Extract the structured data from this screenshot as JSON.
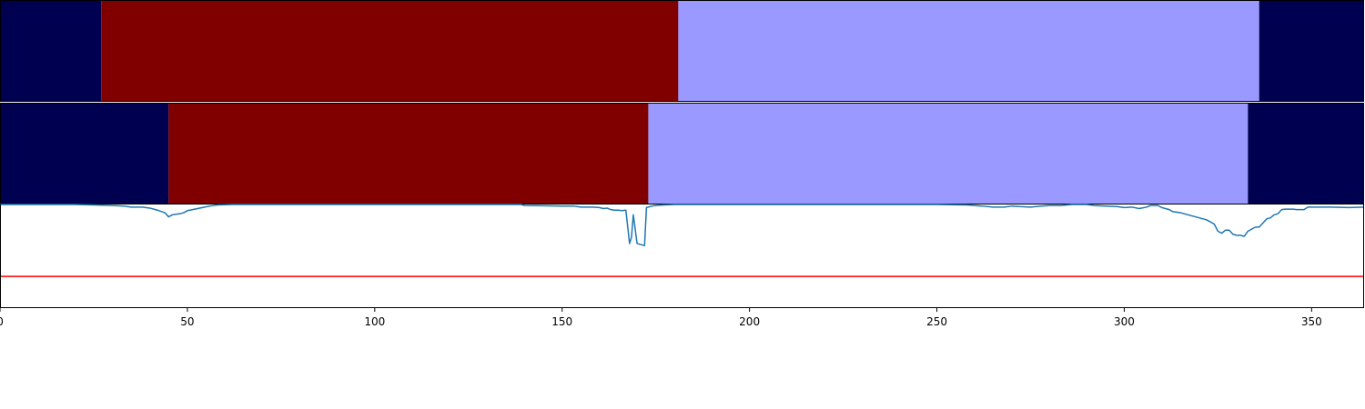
{
  "chart_data": {
    "type": "area",
    "xlim": [
      0,
      364
    ],
    "x_ticks": [
      0,
      50,
      100,
      150,
      200,
      250,
      300,
      350
    ],
    "colors": {
      "state_a": "#000050",
      "state_b": "#800000",
      "state_c": "#9999ff",
      "line": "#1f77b4",
      "threshold": "#ff0000",
      "axes": "#000000"
    },
    "segment_rows": [
      {
        "segments": [
          {
            "start": 0,
            "end": 27,
            "state": "state_a"
          },
          {
            "start": 27,
            "end": 181,
            "state": "state_b"
          },
          {
            "start": 181,
            "end": 336,
            "state": "state_c"
          },
          {
            "start": 336,
            "end": 364,
            "state": "state_a"
          }
        ]
      },
      {
        "segments": [
          {
            "start": 0,
            "end": 45,
            "state": "state_a"
          },
          {
            "start": 45,
            "end": 173,
            "state": "state_b"
          },
          {
            "start": 173,
            "end": 333,
            "state": "state_c"
          },
          {
            "start": 333,
            "end": 364,
            "state": "state_a"
          }
        ]
      }
    ],
    "signal": {
      "ylim": [
        0,
        1
      ],
      "threshold": 0.3,
      "points": [
        [
          0,
          1.0
        ],
        [
          20,
          1.0
        ],
        [
          25,
          0.995
        ],
        [
          30,
          0.99
        ],
        [
          33,
          0.985
        ],
        [
          35,
          0.975
        ],
        [
          38,
          0.975
        ],
        [
          40,
          0.965
        ],
        [
          42,
          0.945
        ],
        [
          44,
          0.92
        ],
        [
          45,
          0.88
        ],
        [
          46,
          0.9
        ],
        [
          48,
          0.91
        ],
        [
          49,
          0.92
        ],
        [
          50,
          0.94
        ],
        [
          52,
          0.955
        ],
        [
          54,
          0.97
        ],
        [
          56,
          0.985
        ],
        [
          58,
          0.995
        ],
        [
          62,
          1.0
        ],
        [
          70,
          1.0
        ],
        [
          120,
          1.0
        ],
        [
          139,
          1.0
        ],
        [
          140,
          0.99
        ],
        [
          145,
          0.988
        ],
        [
          150,
          0.985
        ],
        [
          153,
          0.985
        ],
        [
          155,
          0.975
        ],
        [
          158,
          0.975
        ],
        [
          160,
          0.97
        ],
        [
          161,
          0.96
        ],
        [
          162,
          0.965
        ],
        [
          163,
          0.95
        ],
        [
          164,
          0.945
        ],
        [
          165,
          0.945
        ],
        [
          166,
          0.94
        ],
        [
          167,
          0.945
        ],
        [
          168,
          0.62
        ],
        [
          168.5,
          0.68
        ],
        [
          169,
          0.9
        ],
        [
          170,
          0.62
        ],
        [
          172,
          0.6
        ],
        [
          172.5,
          0.97
        ],
        [
          174,
          0.985
        ],
        [
          175,
          0.99
        ],
        [
          177,
          0.995
        ],
        [
          180,
          1.0
        ],
        [
          200,
          1.0
        ],
        [
          230,
          1.0
        ],
        [
          250,
          1.0
        ],
        [
          258,
          0.995
        ],
        [
          262,
          0.985
        ],
        [
          265,
          0.975
        ],
        [
          268,
          0.975
        ],
        [
          270,
          0.985
        ],
        [
          272,
          0.98
        ],
        [
          275,
          0.975
        ],
        [
          278,
          0.985
        ],
        [
          280,
          0.99
        ],
        [
          283,
          0.99
        ],
        [
          286,
          1.0
        ],
        [
          290,
          1.0
        ],
        [
          292,
          0.99
        ],
        [
          295,
          0.985
        ],
        [
          298,
          0.98
        ],
        [
          300,
          0.97
        ],
        [
          302,
          0.975
        ],
        [
          304,
          0.96
        ],
        [
          306,
          0.975
        ],
        [
          307,
          0.99
        ],
        [
          309,
          0.99
        ],
        [
          310,
          0.97
        ],
        [
          312,
          0.95
        ],
        [
          313,
          0.93
        ],
        [
          315,
          0.92
        ],
        [
          317,
          0.9
        ],
        [
          318,
          0.89
        ],
        [
          320,
          0.87
        ],
        [
          322,
          0.85
        ],
        [
          323,
          0.83
        ],
        [
          324,
          0.81
        ],
        [
          325,
          0.74
        ],
        [
          326,
          0.72
        ],
        [
          327,
          0.75
        ],
        [
          328,
          0.75
        ],
        [
          329,
          0.71
        ],
        [
          330,
          0.7
        ],
        [
          331,
          0.7
        ],
        [
          332,
          0.69
        ],
        [
          333,
          0.74
        ],
        [
          334,
          0.76
        ],
        [
          335,
          0.78
        ],
        [
          336,
          0.78
        ],
        [
          337,
          0.82
        ],
        [
          338,
          0.86
        ],
        [
          339,
          0.87
        ],
        [
          340,
          0.9
        ],
        [
          341,
          0.91
        ],
        [
          342,
          0.95
        ],
        [
          343,
          0.955
        ],
        [
          345,
          0.955
        ],
        [
          346,
          0.95
        ],
        [
          348,
          0.95
        ],
        [
          349,
          0.975
        ],
        [
          351,
          0.975
        ],
        [
          355,
          0.975
        ],
        [
          360,
          0.97
        ],
        [
          364,
          0.975
        ]
      ]
    }
  }
}
